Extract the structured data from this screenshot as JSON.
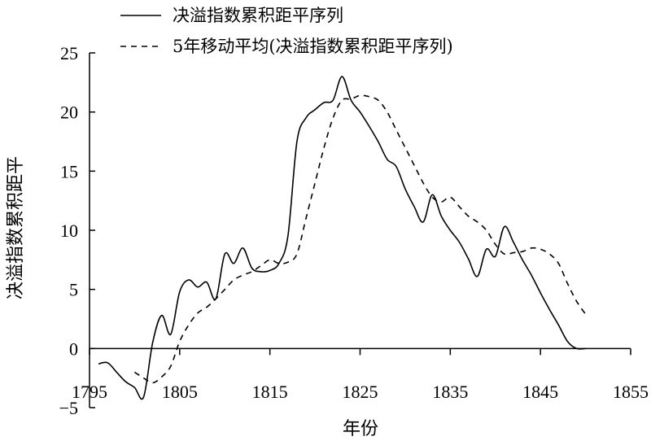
{
  "chart_data": {
    "type": "line",
    "xlabel": "年份",
    "ylabel": "决溢指数累积距平",
    "xlim": [
      1795,
      1855
    ],
    "ylim": [
      -5,
      25
    ],
    "xticks": [
      1795,
      1805,
      1815,
      1825,
      1835,
      1845,
      1855
    ],
    "yticks": [
      -5,
      0,
      5,
      10,
      15,
      20,
      25
    ],
    "legend_position": "top-left",
    "grid": false,
    "series": [
      {
        "name": "决溢指数累积距平序列",
        "style": "solid",
        "color": "#000000",
        "x": [
          1796,
          1797,
          1798,
          1799,
          1800,
          1801,
          1802,
          1803,
          1804,
          1805,
          1806,
          1807,
          1808,
          1809,
          1810,
          1811,
          1812,
          1813,
          1814,
          1815,
          1816,
          1817,
          1818,
          1819,
          1820,
          1821,
          1822,
          1823,
          1824,
          1825,
          1826,
          1827,
          1828,
          1829,
          1830,
          1831,
          1832,
          1833,
          1834,
          1835,
          1836,
          1837,
          1838,
          1839,
          1840,
          1841,
          1842,
          1843,
          1844,
          1845,
          1846,
          1847,
          1848,
          1849,
          1850
        ],
        "y": [
          -1.3,
          -1.2,
          -2.0,
          -2.8,
          -3.3,
          -4.1,
          0.5,
          2.8,
          1.2,
          4.8,
          5.8,
          5.2,
          5.6,
          4.2,
          8.0,
          7.2,
          8.5,
          6.8,
          6.5,
          6.6,
          7.2,
          9.5,
          17.5,
          19.5,
          20.2,
          20.8,
          21.0,
          23.0,
          21.0,
          20.0,
          18.8,
          17.5,
          16.0,
          15.4,
          13.5,
          12.0,
          10.7,
          13.0,
          11.2,
          10.0,
          9.0,
          7.6,
          6.1,
          8.4,
          7.8,
          10.3,
          9.0,
          7.5,
          6.2,
          4.7,
          3.3,
          2.0,
          0.6,
          0.0,
          0.0
        ]
      },
      {
        "name": "5年移动平均(决溢指数累积距平序列)",
        "style": "dashed",
        "color": "#000000",
        "x": [
          1800,
          1801,
          1802,
          1803,
          1804,
          1805,
          1806,
          1807,
          1808,
          1809,
          1810,
          1811,
          1812,
          1813,
          1814,
          1815,
          1816,
          1817,
          1818,
          1819,
          1820,
          1821,
          1822,
          1823,
          1824,
          1825,
          1826,
          1827,
          1828,
          1829,
          1830,
          1831,
          1832,
          1833,
          1834,
          1835,
          1836,
          1837,
          1838,
          1839,
          1840,
          1841,
          1842,
          1843,
          1844,
          1845,
          1846,
          1847,
          1848,
          1849,
          1850
        ],
        "y": [
          -2.0,
          -2.5,
          -2.9,
          -2.4,
          -1.5,
          0.6,
          2.0,
          3.0,
          3.5,
          4.2,
          5.0,
          5.8,
          6.2,
          6.5,
          7.0,
          7.5,
          7.2,
          7.3,
          8.0,
          11.0,
          14.0,
          17.0,
          19.5,
          21.0,
          21.1,
          21.4,
          21.3,
          21.0,
          20.0,
          18.5,
          17.0,
          15.5,
          14.0,
          12.8,
          12.4,
          12.8,
          12.0,
          11.2,
          10.7,
          10.0,
          8.8,
          8.0,
          8.1,
          8.2,
          8.5,
          8.4,
          8.0,
          7.2,
          5.5,
          4.0,
          2.9
        ]
      }
    ]
  }
}
